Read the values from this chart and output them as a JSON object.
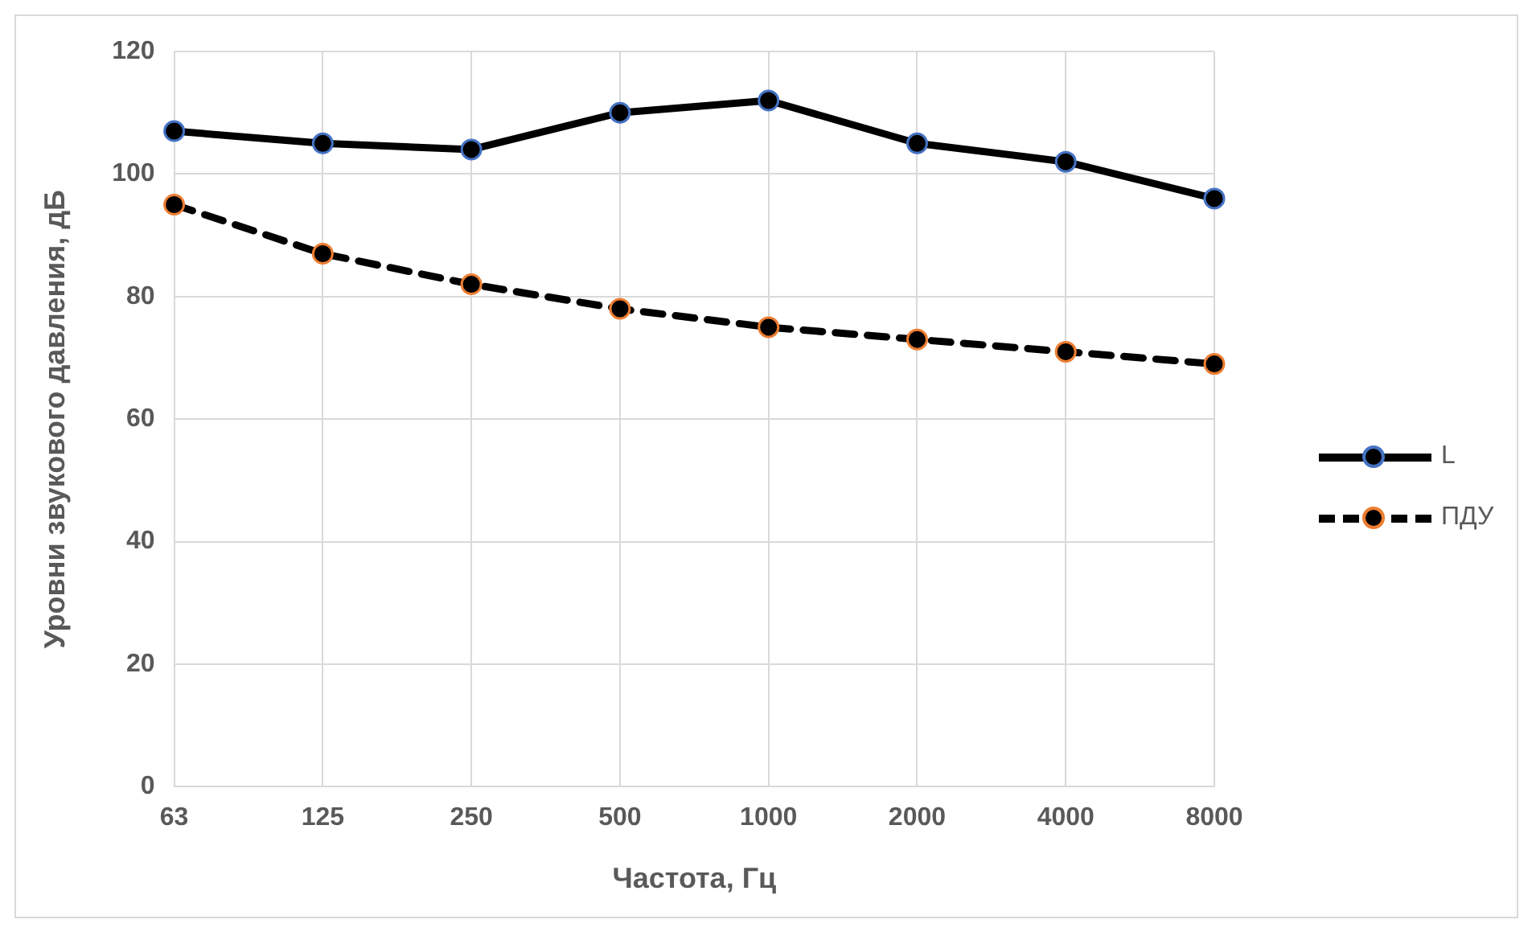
{
  "chart_data": {
    "type": "line",
    "xlabel": "Частота, Гц",
    "ylabel": "Уровни звукового давления, дБ",
    "categories": [
      "63",
      "125",
      "250",
      "500",
      "1000",
      "2000",
      "4000",
      "8000"
    ],
    "series": [
      {
        "name": "L",
        "color": "#000000",
        "line_style": "solid",
        "values": [
          107,
          105,
          104,
          110,
          112,
          105,
          102,
          96
        ]
      },
      {
        "name": "ПДУ",
        "color": "#000000",
        "line_style": "dashed",
        "values": [
          95,
          87,
          82,
          78,
          75,
          73,
          71,
          69
        ]
      }
    ],
    "ylim": [
      0,
      120
    ],
    "yticks": [
      0,
      20,
      40,
      60,
      80,
      100,
      120
    ],
    "grid": true,
    "legend": "right",
    "marker": "circle"
  }
}
